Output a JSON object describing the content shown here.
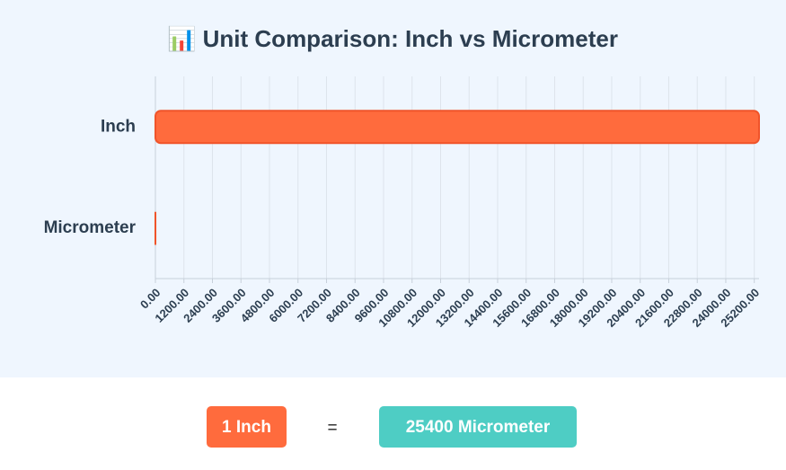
{
  "chart_data": {
    "type": "bar",
    "orientation": "horizontal",
    "title": "📊 Unit Comparison: Inch vs Micrometer",
    "categories": [
      "Inch",
      "Micrometer"
    ],
    "values": [
      25400,
      1
    ],
    "color": "#ff6b3d",
    "xlim": [
      0,
      25400
    ],
    "xticks": [
      {
        "value": 0,
        "label": "0.00"
      },
      {
        "value": 1200,
        "label": "1200.00"
      },
      {
        "value": 2400,
        "label": "2400.00"
      },
      {
        "value": 3600,
        "label": "3600.00"
      },
      {
        "value": 4800,
        "label": "4800.00"
      },
      {
        "value": 6000,
        "label": "6000.00"
      },
      {
        "value": 7200,
        "label": "7200.00"
      },
      {
        "value": 8400,
        "label": "8400.00"
      },
      {
        "value": 9600,
        "label": "9600.00"
      },
      {
        "value": 10800,
        "label": "10800.00"
      },
      {
        "value": 12000,
        "label": "12000.00"
      },
      {
        "value": 13200,
        "label": "13200.00"
      },
      {
        "value": 14400,
        "label": "14400.00"
      },
      {
        "value": 15600,
        "label": "15600.00"
      },
      {
        "value": 16800,
        "label": "16800.00"
      },
      {
        "value": 18000,
        "label": "18000.00"
      },
      {
        "value": 19200,
        "label": "19200.00"
      },
      {
        "value": 20400,
        "label": "20400.00"
      },
      {
        "value": 21600,
        "label": "21600.00"
      },
      {
        "value": 22800,
        "label": "22800.00"
      },
      {
        "value": 24000,
        "label": "24000.00"
      },
      {
        "value": 25200,
        "label": "25200.00"
      }
    ],
    "grid": true
  },
  "conversion": {
    "from": "1 Inch",
    "equals": "=",
    "to": "25400 Micrometer"
  }
}
